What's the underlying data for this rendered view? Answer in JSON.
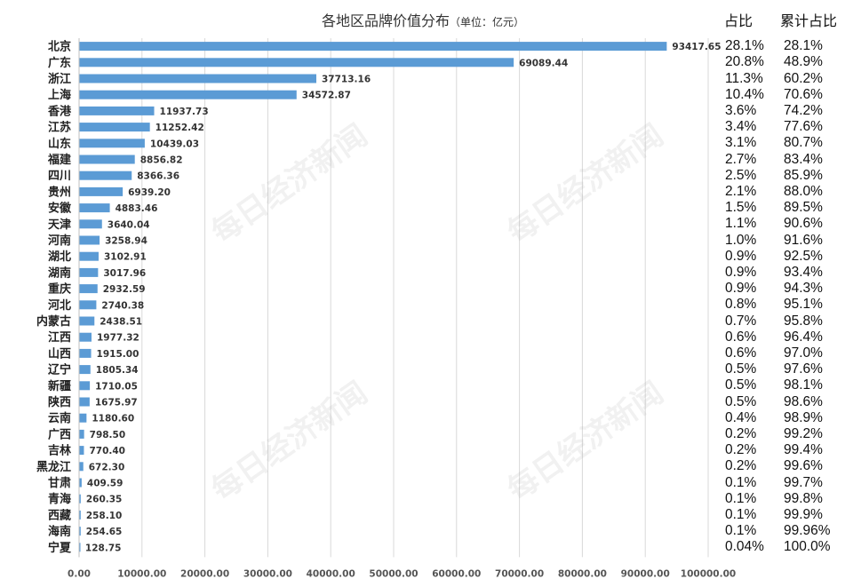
{
  "header": {
    "title": "各地区品牌价值分布",
    "unit": "（单位：亿元）",
    "share_label": "占比",
    "cum_label": "累计占比"
  },
  "watermark_text": "每日经济新闻",
  "colors": {
    "bar": "#5b9bd5",
    "grid": "#d9d9d9",
    "text": "#222222"
  },
  "chart_data": {
    "type": "bar",
    "orientation": "horizontal",
    "title": "各地区品牌价值分布",
    "xlabel": "",
    "ylabel": "",
    "xlim": [
      0,
      100000
    ],
    "xticks": [
      0,
      10000,
      20000,
      30000,
      40000,
      50000,
      60000,
      70000,
      80000,
      90000,
      100000
    ],
    "xtick_labels": [
      "0.00",
      "10000.00",
      "20000.00",
      "30000.00",
      "40000.00",
      "50000.00",
      "60000.00",
      "70000.00",
      "80000.00",
      "90000.00",
      "100000.00"
    ],
    "grid": "vertical",
    "categories": [
      "北京",
      "广东",
      "浙江",
      "上海",
      "香港",
      "江苏",
      "山东",
      "福建",
      "四川",
      "贵州",
      "安徽",
      "天津",
      "河南",
      "湖北",
      "湖南",
      "重庆",
      "河北",
      "内蒙古",
      "江西",
      "山西",
      "辽宁",
      "新疆",
      "陕西",
      "云南",
      "广西",
      "吉林",
      "黑龙江",
      "甘肃",
      "青海",
      "西藏",
      "海南",
      "宁夏"
    ],
    "values": [
      93417.65,
      69089.44,
      37713.16,
      34572.87,
      11937.73,
      11252.42,
      10439.03,
      8856.82,
      8366.36,
      6939.2,
      4883.46,
      3640.04,
      3258.94,
      3102.91,
      3017.96,
      2932.59,
      2740.38,
      2438.51,
      1977.32,
      1915.0,
      1805.34,
      1710.05,
      1675.97,
      1180.6,
      798.5,
      770.4,
      672.3,
      409.59,
      260.35,
      258.1,
      254.65,
      128.75
    ],
    "value_labels": [
      "93417.65",
      "69089.44",
      "37713.16",
      "34572.87",
      "11937.73",
      "11252.42",
      "10439.03",
      "8856.82",
      "8366.36",
      "6939.20",
      "4883.46",
      "3640.04",
      "3258.94",
      "3102.91",
      "3017.96",
      "2932.59",
      "2740.38",
      "2438.51",
      "1977.32",
      "1915.00",
      "1805.34",
      "1710.05",
      "1675.97",
      "1180.60",
      "798.50",
      "770.40",
      "672.30",
      "409.59",
      "260.35",
      "258.10",
      "254.65",
      "128.75"
    ],
    "share": [
      "28.1%",
      "20.8%",
      "11.3%",
      "10.4%",
      "3.6%",
      "3.4%",
      "3.1%",
      "2.7%",
      "2.5%",
      "2.1%",
      "1.5%",
      "1.1%",
      "1.0%",
      "0.9%",
      "0.9%",
      "0.9%",
      "0.8%",
      "0.7%",
      "0.6%",
      "0.6%",
      "0.5%",
      "0.5%",
      "0.5%",
      "0.4%",
      "0.2%",
      "0.2%",
      "0.2%",
      "0.1%",
      "0.1%",
      "0.1%",
      "0.1%",
      "0.04%"
    ],
    "cumulative_share": [
      "28.1%",
      "48.9%",
      "60.2%",
      "70.6%",
      "74.2%",
      "77.6%",
      "80.7%",
      "83.4%",
      "85.9%",
      "88.0%",
      "89.5%",
      "90.6%",
      "91.6%",
      "92.5%",
      "93.4%",
      "94.3%",
      "95.1%",
      "95.8%",
      "96.4%",
      "97.0%",
      "97.6%",
      "98.1%",
      "98.6%",
      "98.9%",
      "99.2%",
      "99.4%",
      "99.6%",
      "99.7%",
      "99.8%",
      "99.9%",
      "99.96%",
      "100.0%"
    ]
  }
}
